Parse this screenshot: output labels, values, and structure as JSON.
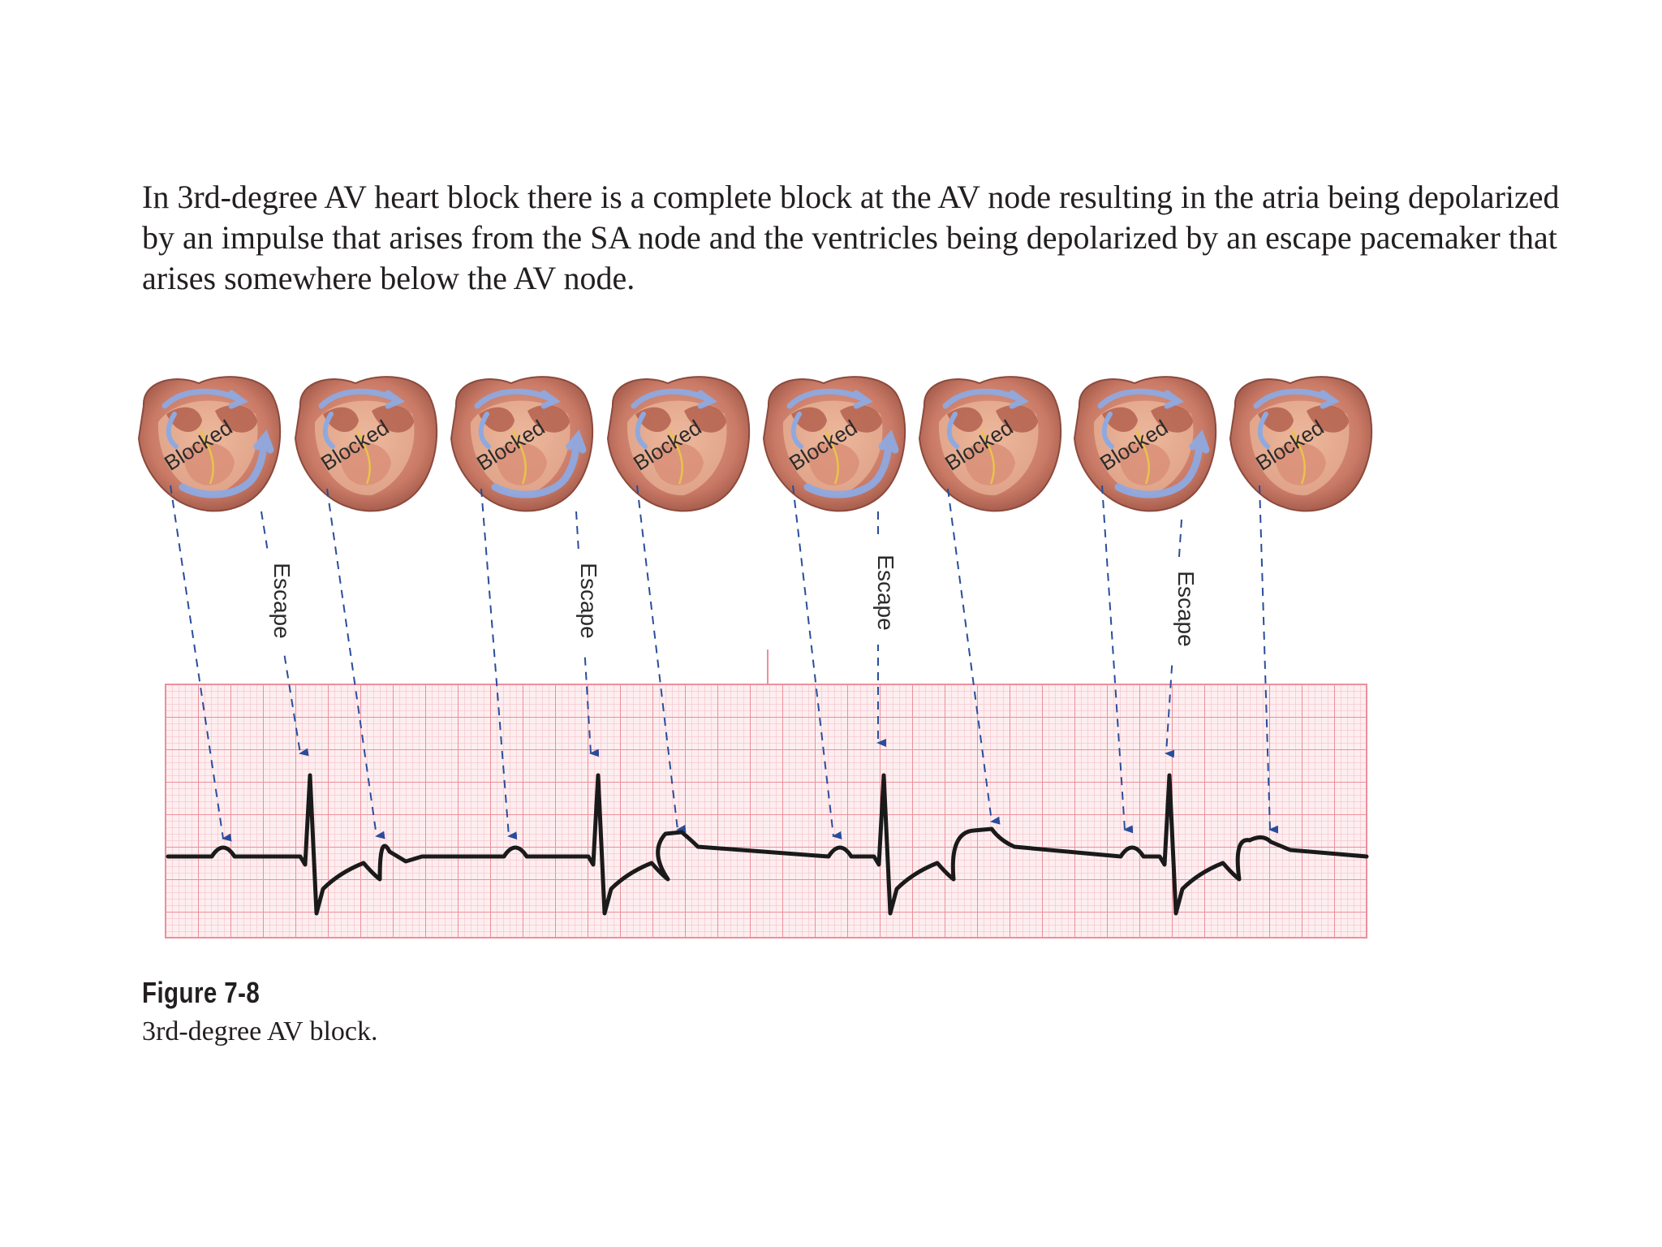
{
  "intro_text": "In 3rd-degree AV heart block there is a complete block at the AV node resulting in the atria being depolarized by an impulse that arises from the SA node and the ventricles being depolarized by an escape pacemaker that arises somewhere below the AV node.",
  "figure": {
    "label": "Figure 7-8",
    "caption": "3rd-degree AV block.",
    "heart_label": "Blocked",
    "escape_label": "Escape",
    "heart_count": 8,
    "escape_count": 4
  },
  "colors": {
    "ecg_grid_minor": "#f6c3c8",
    "ecg_grid_major": "#ee9aa3",
    "ecg_background": "#fdeef0",
    "trace": "#1a1a1a",
    "arrow": "#2a4d9b",
    "heart_muscle": "#c97a66",
    "heart_highlight": "#f2c6a8",
    "conduction": "#8ea9e0"
  }
}
